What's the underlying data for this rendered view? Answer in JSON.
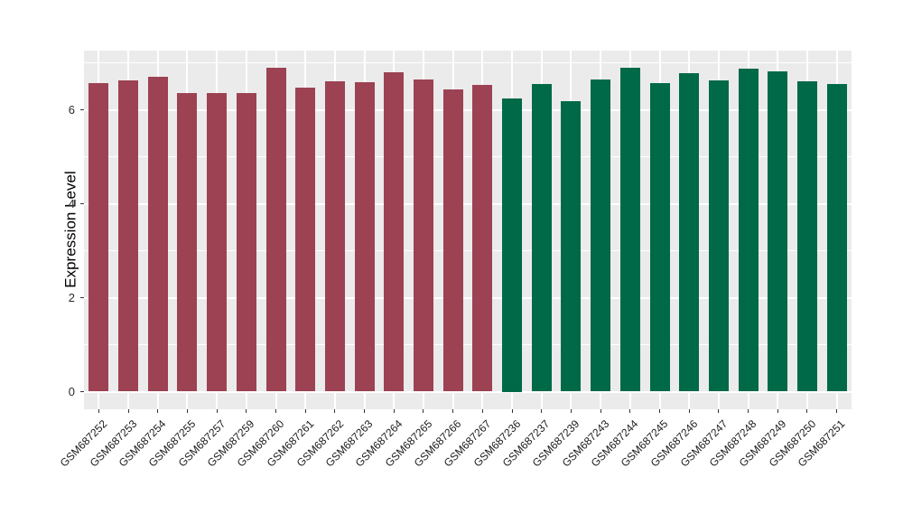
{
  "chart_data": {
    "type": "bar",
    "title": "",
    "xlabel": "",
    "ylabel": "Expression Level",
    "ylim": [
      0,
      7.25
    ],
    "yticks": [
      0,
      2,
      4,
      6
    ],
    "yticks_minor": [
      1,
      3,
      5,
      7
    ],
    "grid": "on",
    "legend": "none",
    "panel_background": "#EBEBEB",
    "gridline_color": "#FFFFFF",
    "groups": [
      {
        "name": "maroon-group",
        "color": "#9C4252"
      },
      {
        "name": "green-group",
        "color": "#006948"
      }
    ],
    "bars": [
      {
        "label": "GSM687252",
        "value": 6.58,
        "group": 0
      },
      {
        "label": "GSM687253",
        "value": 6.63,
        "group": 0
      },
      {
        "label": "GSM687254",
        "value": 6.71,
        "group": 0
      },
      {
        "label": "GSM687255",
        "value": 6.36,
        "group": 0
      },
      {
        "label": "GSM687257",
        "value": 6.36,
        "group": 0
      },
      {
        "label": "GSM687259",
        "value": 6.36,
        "group": 0
      },
      {
        "label": "GSM687260",
        "value": 6.9,
        "group": 0
      },
      {
        "label": "GSM687261",
        "value": 6.48,
        "group": 0
      },
      {
        "label": "GSM687262",
        "value": 6.62,
        "group": 0
      },
      {
        "label": "GSM687263",
        "value": 6.59,
        "group": 0
      },
      {
        "label": "GSM687264",
        "value": 6.8,
        "group": 0
      },
      {
        "label": "GSM687265",
        "value": 6.65,
        "group": 0
      },
      {
        "label": "GSM687266",
        "value": 6.43,
        "group": 0
      },
      {
        "label": "GSM687267",
        "value": 6.53,
        "group": 0
      },
      {
        "label": "GSM687236",
        "value": 6.25,
        "group": 1
      },
      {
        "label": "GSM687237",
        "value": 6.56,
        "group": 1
      },
      {
        "label": "GSM687239",
        "value": 6.19,
        "group": 1
      },
      {
        "label": "GSM687243",
        "value": 6.65,
        "group": 1
      },
      {
        "label": "GSM687244",
        "value": 6.9,
        "group": 1
      },
      {
        "label": "GSM687245",
        "value": 6.57,
        "group": 1
      },
      {
        "label": "GSM687246",
        "value": 6.79,
        "group": 1
      },
      {
        "label": "GSM687247",
        "value": 6.64,
        "group": 1
      },
      {
        "label": "GSM687248",
        "value": 6.89,
        "group": 1
      },
      {
        "label": "GSM687249",
        "value": 6.82,
        "group": 1
      },
      {
        "label": "GSM687250",
        "value": 6.61,
        "group": 1
      },
      {
        "label": "GSM687251",
        "value": 6.56,
        "group": 1
      }
    ]
  }
}
